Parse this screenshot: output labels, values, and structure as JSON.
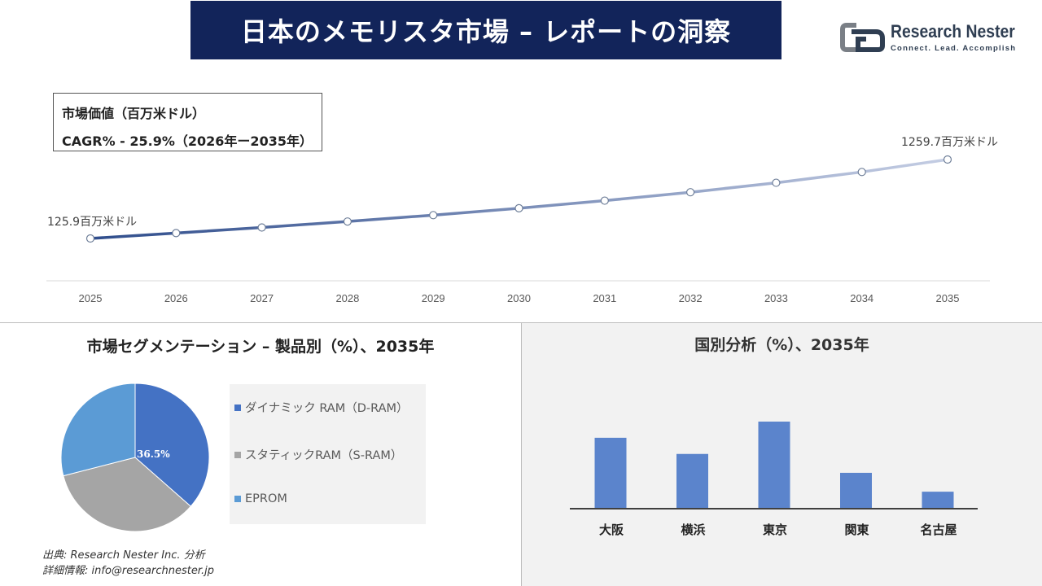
{
  "header": {
    "title": "日本のメモリスタ市場 – レポートの洞察",
    "logo_text": "Research Nester",
    "logo_tagline": "Connect. Lead. Accomplish"
  },
  "value_box": {
    "line1": "市場価値（百万米ドル）",
    "line2": "CAGR% - 25.9%（2026年ー2035年）"
  },
  "segment_title": "市場セグメンテーション – 製品別（%）、2035年",
  "country_title": "国別分析（%）、2035年",
  "source": {
    "line1": "出典: Research Nester Inc. 分析",
    "line2": "詳細情報: info@researchnester.jp"
  },
  "colors": {
    "banner": "#12245a",
    "line_start": "#2f4d8c",
    "line_end": "#c4cde3",
    "pie_dram": "#4472c4",
    "pie_sram": "#a5a5a5",
    "pie_eprom": "#5b9bd5",
    "bar": "#5b84cc"
  },
  "chart_data": [
    {
      "type": "line",
      "x": [
        "2025",
        "2026",
        "2027",
        "2028",
        "2029",
        "2030",
        "2031",
        "2032",
        "2033",
        "2034",
        "2035"
      ],
      "series": [
        {
          "values": [
            125.9,
            158.5,
            199.6,
            251.2,
            316.3,
            398.2,
            501.3,
            631.1,
            794.5,
            1000.3,
            1259.7
          ]
        }
      ],
      "labels": {
        "first": "125.9百万米ドル",
        "last": "1259.7百万米ドル"
      },
      "grid": false
    },
    {
      "type": "pie",
      "labels": [
        "ダイナミック RAM（D-RAM）",
        "スタティックRAM（S-RAM）",
        "EPROM"
      ],
      "values": [
        36.5,
        34.5,
        29.0
      ],
      "data_labels": [
        "36.5%"
      ],
      "legend": "right"
    },
    {
      "type": "bar",
      "categories": [
        "大阪",
        "横浜",
        "東京",
        "関東",
        "名古屋"
      ],
      "values": [
        26,
        20,
        32,
        13,
        6
      ],
      "grid": false
    }
  ]
}
